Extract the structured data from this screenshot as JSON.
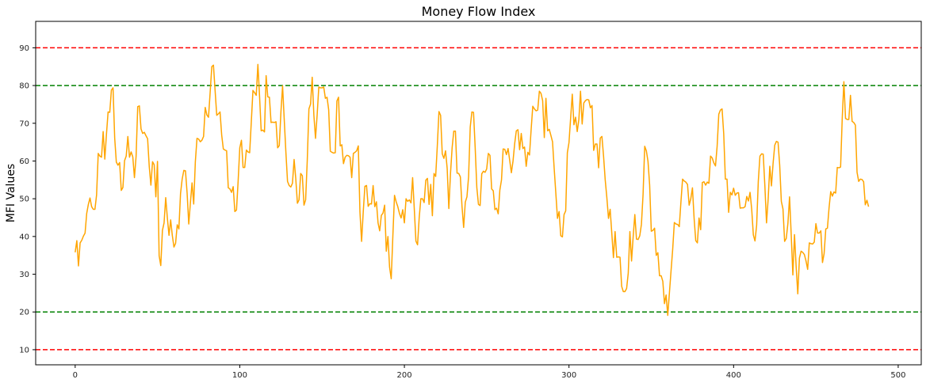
{
  "chart_data": {
    "type": "line",
    "title": "Money Flow Index",
    "xlabel": "",
    "ylabel": "MFI Values",
    "xlim": [
      -24,
      514
    ],
    "ylim": [
      6,
      97
    ],
    "xticks": [
      0,
      100,
      200,
      300,
      400,
      500
    ],
    "yticks": [
      10,
      20,
      30,
      40,
      50,
      60,
      70,
      80,
      90
    ],
    "grid": false,
    "reference_lines": [
      {
        "y": 90,
        "color": "#ff0000",
        "style": "dashed"
      },
      {
        "y": 80,
        "color": "#008000",
        "style": "dashed"
      },
      {
        "y": 20,
        "color": "#008000",
        "style": "dashed"
      },
      {
        "y": 10,
        "color": "#ff0000",
        "style": "dashed"
      }
    ],
    "series": [
      {
        "color": "#ffa500",
        "x_start": 0,
        "x_step": 1,
        "values": [
          35.8,
          38.9,
          32.2,
          38.3,
          39.0,
          40.1,
          40.9,
          46.1,
          48.5,
          50.2,
          47.9,
          47.2,
          47.2,
          51.0,
          62.0,
          61.3,
          61.0,
          67.8,
          60.5,
          67.1,
          73.0,
          72.9,
          78.8,
          79.4,
          66.1,
          59.7,
          58.9,
          59.6,
          52.2,
          53.0,
          60.1,
          61.3,
          66.5,
          61.0,
          62.4,
          61.1,
          55.6,
          61.2,
          74.4,
          74.6,
          68.5,
          67.3,
          67.6,
          66.7,
          65.9,
          58.5,
          53.6,
          59.8,
          59.0,
          50.5,
          59.9,
          34.9,
          32.3,
          41.6,
          43.6,
          50.3,
          44.9,
          40.3,
          44.4,
          40.3,
          37.2,
          38.2,
          43.1,
          42.0,
          51.4,
          55.2,
          57.5,
          57.4,
          51.5,
          43.3,
          48.9,
          54.2,
          48.6,
          59.8,
          66.0,
          65.8,
          65.1,
          65.5,
          66.5,
          74.2,
          72.2,
          71.6,
          78.2,
          85.0,
          85.4,
          78.7,
          72.1,
          72.5,
          73.0,
          66.9,
          63.2,
          62.9,
          62.7,
          52.9,
          52.6,
          51.7,
          53.2,
          46.6,
          47.0,
          54.7,
          63.5,
          65.5,
          58.3,
          58.3,
          62.9,
          62.4,
          62.2,
          70.4,
          78.7,
          78.1,
          77.4,
          85.6,
          77.3,
          68.0,
          68.2,
          67.7,
          82.6,
          77.0,
          76.9,
          70.2,
          70.3,
          70.2,
          70.4,
          63.5,
          64.1,
          73.0,
          79.9,
          71.0,
          62.4,
          54.6,
          53.5,
          53.1,
          54.1,
          60.4,
          55.4,
          48.8,
          49.7,
          56.7,
          56.1,
          48.3,
          49.7,
          60.2,
          73.8,
          75.1,
          82.2,
          72.2,
          66.0,
          72.2,
          79.6,
          79.4,
          79.4,
          79.6,
          76.6,
          76.9,
          73.6,
          62.6,
          62.3,
          62.1,
          62.2,
          75.9,
          76.9,
          64.0,
          64.3,
          59.3,
          61.0,
          61.5,
          61.4,
          61.0,
          55.6,
          62.0,
          62.3,
          62.7,
          64.0,
          46.5,
          38.7,
          46.5,
          53.3,
          53.5,
          48.0,
          48.7,
          48.6,
          53.5,
          47.9,
          49.2,
          43.6,
          41.5,
          45.6,
          46.2,
          48.3,
          36.1,
          40.0,
          31.9,
          28.8,
          40.2,
          50.9,
          49.2,
          47.9,
          46.1,
          44.9,
          47.1,
          43.6,
          50.0,
          49.3,
          49.7,
          48.9,
          55.6,
          47.4,
          38.8,
          37.8,
          45.0,
          50.0,
          50.0,
          49.0,
          54.9,
          55.4,
          48.5,
          53.8,
          45.5,
          56.7,
          55.9,
          64.0,
          73.1,
          72.1,
          61.9,
          60.7,
          62.7,
          58.0,
          47.4,
          56.6,
          63.5,
          67.9,
          67.9,
          56.8,
          56.7,
          55.8,
          48.0,
          42.4,
          49.1,
          50.5,
          55.8,
          69.0,
          73.0,
          72.9,
          63.6,
          53.0,
          48.5,
          48.2,
          56.6,
          57.3,
          57.0,
          57.9,
          62.0,
          61.5,
          52.6,
          52.1,
          47.1,
          47.5,
          46.0,
          52.3,
          55.0,
          63.2,
          63.1,
          61.7,
          63.3,
          60.1,
          56.9,
          60.0,
          64.6,
          68.0,
          68.3,
          63.0,
          67.3,
          63.3,
          63.7,
          58.6,
          62.3,
          61.6,
          68.3,
          74.5,
          73.8,
          73.3,
          73.5,
          78.5,
          77.9,
          76.0,
          66.2,
          76.6,
          68.0,
          68.4,
          66.8,
          65.1,
          58.0,
          51.5,
          44.8,
          46.6,
          40.2,
          39.9,
          45.8,
          46.8,
          62.2,
          64.9,
          71.4,
          77.7,
          69.6,
          71.6,
          67.8,
          71.0,
          78.5,
          69.8,
          75.4,
          76.0,
          76.3,
          76.2,
          74.1,
          74.7,
          62.8,
          64.5,
          64.5,
          58.2,
          66.1,
          66.5,
          61.3,
          55.0,
          50.3,
          44.8,
          47.2,
          40.9,
          34.4,
          41.3,
          34.5,
          34.6,
          34.5,
          26.8,
          25.4,
          25.4,
          26.2,
          30.3,
          41.3,
          33.5,
          40.0,
          45.8,
          39.3,
          39.2,
          40.2,
          43.2,
          51.1,
          63.9,
          62.7,
          59.9,
          53.6,
          41.4,
          41.6,
          42.2,
          35.0,
          35.7,
          29.6,
          29.6,
          28.1,
          22.2,
          24.5,
          19.1,
          25.0,
          30.9,
          36.6,
          43.7,
          43.3,
          43.2,
          42.6,
          49.1,
          55.2,
          54.7,
          54.4,
          53.8,
          48.3,
          50.0,
          52.9,
          44.9,
          38.9,
          38.3,
          44.9,
          41.8,
          54.3,
          54.5,
          53.6,
          54.4,
          54.1,
          61.3,
          60.8,
          59.5,
          58.7,
          63.9,
          72.4,
          73.5,
          73.8,
          67.2,
          55.2,
          55.2,
          46.4,
          51.7,
          51.0,
          52.8,
          50.9,
          51.5,
          51.6,
          47.5,
          47.6,
          47.6,
          47.9,
          50.6,
          49.4,
          51.7,
          47.2,
          40.4,
          38.8,
          43.0,
          54.6,
          61.3,
          61.9,
          61.8,
          53.4,
          43.6,
          49.9,
          58.6,
          53.4,
          59.4,
          64.2,
          65.2,
          65.0,
          58.9,
          49.3,
          47.3,
          38.7,
          39.5,
          43.5,
          50.5,
          40.5,
          29.8,
          40.5,
          32.0,
          24.8,
          34.3,
          36.1,
          35.8,
          35.2,
          33.5,
          31.3,
          38.3,
          38.1,
          38.0,
          38.5,
          43.4,
          40.9,
          40.9,
          41.5,
          33.1,
          35.5,
          42.0,
          42.2,
          47.6,
          51.9,
          50.7,
          51.8,
          51.5,
          58.3,
          58.2,
          58.4,
          71.3,
          81.0,
          71.3,
          71.0,
          71.0,
          77.4,
          70.5,
          70.2,
          69.5,
          57.0,
          54.6,
          55.2,
          55.1,
          54.5,
          48.4,
          49.6,
          47.9
        ]
      }
    ]
  }
}
